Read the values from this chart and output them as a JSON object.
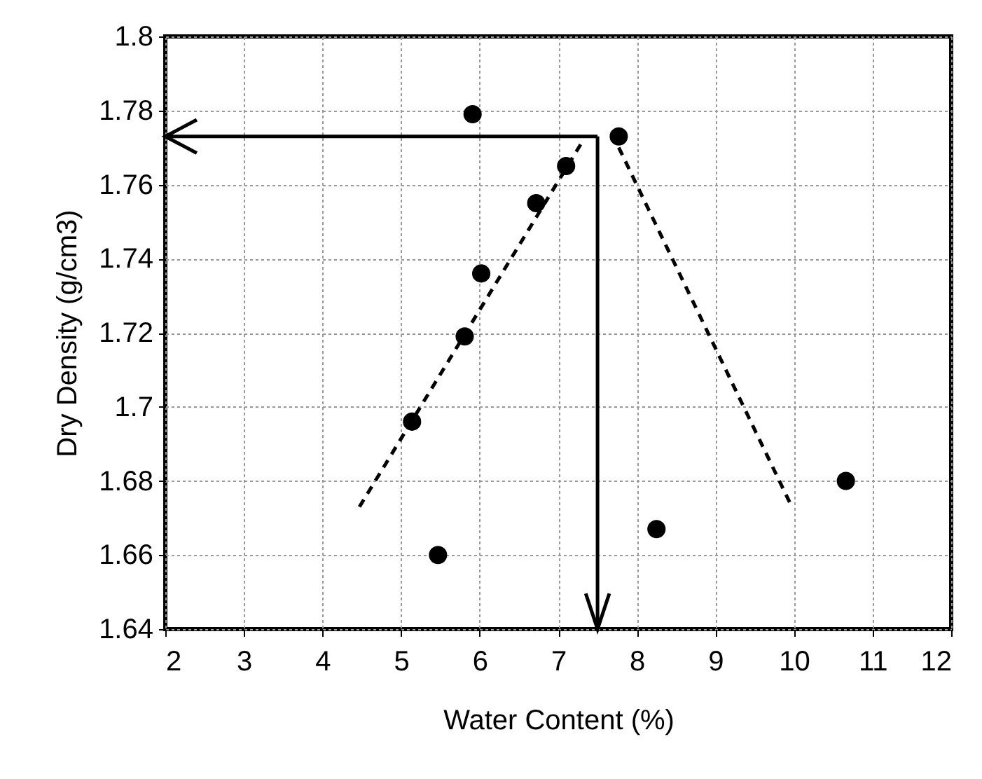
{
  "chart_data": {
    "type": "scatter",
    "xlabel": "Water Content (%)",
    "ylabel": "Dry Density (g/cm3)",
    "xlim": [
      2,
      12
    ],
    "ylim": [
      1.64,
      1.8
    ],
    "xticks": [
      2,
      3,
      4,
      5,
      6,
      7,
      8,
      9,
      10,
      11,
      12
    ],
    "yticks": [
      1.64,
      1.66,
      1.68,
      1.7,
      1.72,
      1.74,
      1.76,
      1.78,
      1.8
    ],
    "grid": true,
    "series": [
      {
        "color": "#000000",
        "marker": "circle",
        "x": [
          5.91,
          7.77,
          7.1,
          6.72,
          6.02,
          5.81,
          5.14,
          5.47,
          8.25,
          10.66
        ],
        "values": [
          1.779,
          1.773,
          1.765,
          1.755,
          1.736,
          1.719,
          1.696,
          1.66,
          1.667,
          1.68
        ]
      },
      {
        "type": "line",
        "color": "#000000",
        "marker": "none",
        "line_style": "dashed",
        "x": [
          4.47,
          7.29
        ],
        "values": [
          1.673,
          1.771
        ]
      },
      {
        "type": "line",
        "color": "#000000",
        "marker": "none",
        "line_style": "dashed",
        "x": [
          7.77,
          9.95
        ],
        "values": [
          1.77,
          1.674
        ]
      }
    ],
    "ref_lines": [
      {
        "axis": "x",
        "value": 7.5,
        "color": "#000000"
      },
      {
        "axis": "y",
        "value": 1.773,
        "color": "#000000"
      }
    ]
  }
}
